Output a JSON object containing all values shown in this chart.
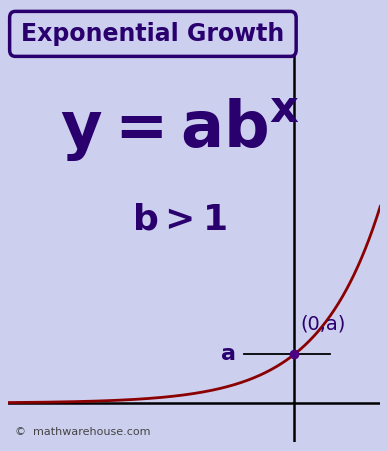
{
  "title": "Exponential Growth",
  "background_color": "#ccd0ee",
  "title_color": "#2a006e",
  "formula_color": "#2a006e",
  "curve_color": "#8b0000",
  "axis_color": "#000000",
  "point_color": "#4b0082",
  "annotation_a": "a",
  "annotation_point": "(0,a)",
  "copyright": "©  mathwarehouse.com",
  "title_fontsize": 17,
  "formula_fontsize": 46,
  "superscript_fontsize": 22,
  "condition_fontsize": 26,
  "copyright_fontsize": 8,
  "annotation_fontsize": 16,
  "point_annotation_fontsize": 14,
  "xlim": [
    -4.0,
    1.2
  ],
  "ylim": [
    -0.8,
    8.0
  ],
  "yaxis_x": 0.0,
  "xaxis_y": 0.0,
  "a_val": 1.0,
  "b_val": 3.2
}
